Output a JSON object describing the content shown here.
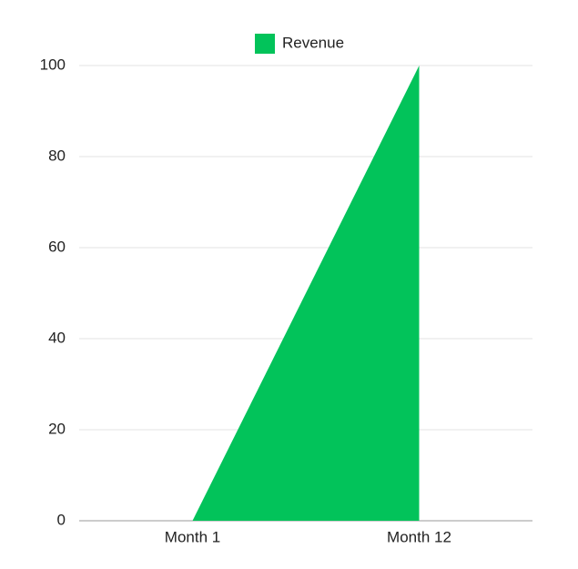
{
  "chart_data": {
    "type": "area",
    "categories": [
      "Month 1",
      "Month 12"
    ],
    "series": [
      {
        "name": "Revenue",
        "color": "#02c35a",
        "values": [
          0,
          100
        ]
      }
    ],
    "ylim": [
      0,
      100
    ],
    "yticks": [
      0,
      20,
      40,
      60,
      80,
      100
    ],
    "grid": true,
    "legend": "top"
  }
}
